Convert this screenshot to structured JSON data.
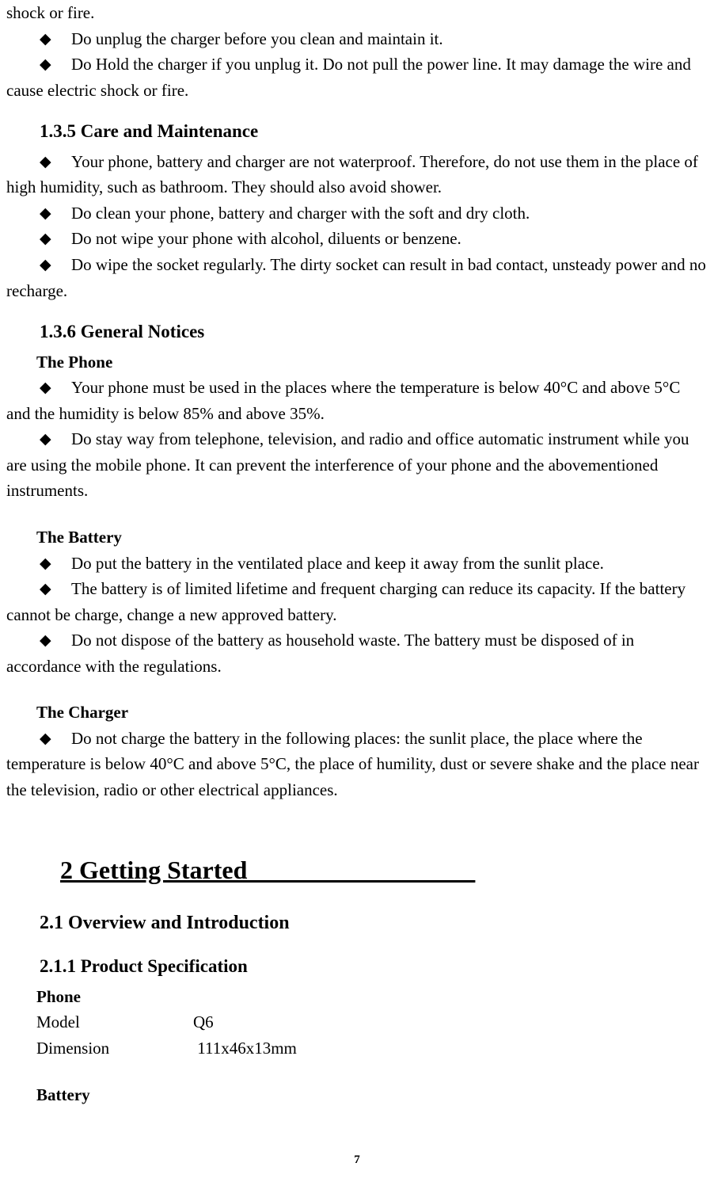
{
  "intro_fragment": "shock or fire.",
  "bullets_top": [
    "Do unplug the charger before you clean and maintain it.",
    "Do Hold the charger if you unplug it. Do not pull the power line. It may damage the wire and cause electric shock or fire."
  ],
  "s135_title": "1.3.5 Care and Maintenance",
  "s135_bullets": [
    "Your phone, battery and charger are not waterproof. Therefore, do not use them in the place of high humidity, such as bathroom. They should also avoid shower.",
    "Do clean your phone, battery and charger with the soft and dry cloth.",
    "Do not wipe your phone with alcohol, diluents or benzene.",
    "Do wipe the socket regularly. The dirty socket can result in bad contact, unsteady power and no recharge."
  ],
  "s136_title": "1.3.6 General Notices",
  "s136_phone_title": "The Phone",
  "s136_phone_bullets": [
    "Your phone must be used in the places where the temperature is below 40°C and above 5°C and the humidity is below 85% and above 35%.",
    "Do stay way from telephone, television, and radio and office automatic instrument while you are using the mobile phone. It can prevent the interference of your phone and the abovementioned instruments."
  ],
  "s136_battery_title": "The Battery",
  "s136_battery_bullets": [
    "Do put the battery in the ventilated place and keep it away from the sunlit place.",
    "The battery is of limited lifetime and frequent charging can reduce its capacity. If the battery cannot be charge, change a new approved battery.",
    "Do not dispose of the battery as household waste. The battery must be disposed of in accordance with the regulations."
  ],
  "s136_charger_title": "The Charger",
  "s136_charger_bullets": [
    "Do not charge the battery in the following places: the sunlit place, the place where the temperature is below 40°C and above 5°C, the place of humility, dust or severe shake and the place near the television, radio or other electrical appliances."
  ],
  "ch2_title": "2 Getting Started                                    ",
  "s21_title": "2.1 Overview and Introduction",
  "s211_title": "2.1.1 Product Specification",
  "spec_phone_title": "Phone",
  "spec_model_label": "Model",
  "spec_model_value": "Q6",
  "spec_dim_label": "Dimension",
  "spec_dim_value": " 111x46x13mm",
  "spec_battery_title": "Battery",
  "page_number": "7",
  "diamond_glyph": "◆"
}
